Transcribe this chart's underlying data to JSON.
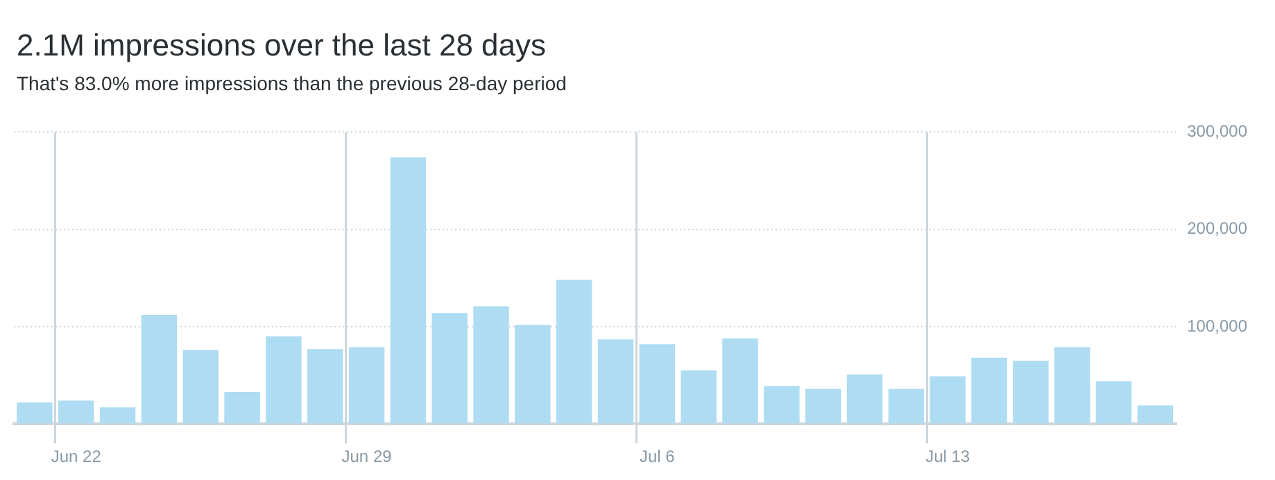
{
  "chart_data": {
    "type": "bar",
    "title": "2.1M impressions over the last 28 days",
    "subtitle": "That's 83.0% more impressions than the previous 28-day period",
    "categories": [
      null,
      "Jun 22",
      null,
      null,
      null,
      null,
      null,
      null,
      "Jun 29",
      null,
      null,
      null,
      null,
      null,
      null,
      "Jul 6",
      null,
      null,
      null,
      null,
      null,
      null,
      "Jul 13",
      null,
      null,
      null,
      null,
      null
    ],
    "values": [
      22000,
      24000,
      17000,
      112000,
      76000,
      33000,
      90000,
      77000,
      79000,
      274000,
      114000,
      121000,
      102000,
      148000,
      87000,
      82000,
      55000,
      88000,
      39000,
      36000,
      51000,
      36000,
      49000,
      68000,
      65000,
      79000,
      44000,
      19000
    ],
    "color": "#aedcf3",
    "ylim": [
      0,
      300000
    ],
    "yticks": [
      {
        "value": 0,
        "label": null
      },
      {
        "value": 100000,
        "label": "100,000"
      },
      {
        "value": 200000,
        "label": "200,000"
      },
      {
        "value": 300000,
        "label": "300,000"
      }
    ],
    "grid": true
  }
}
